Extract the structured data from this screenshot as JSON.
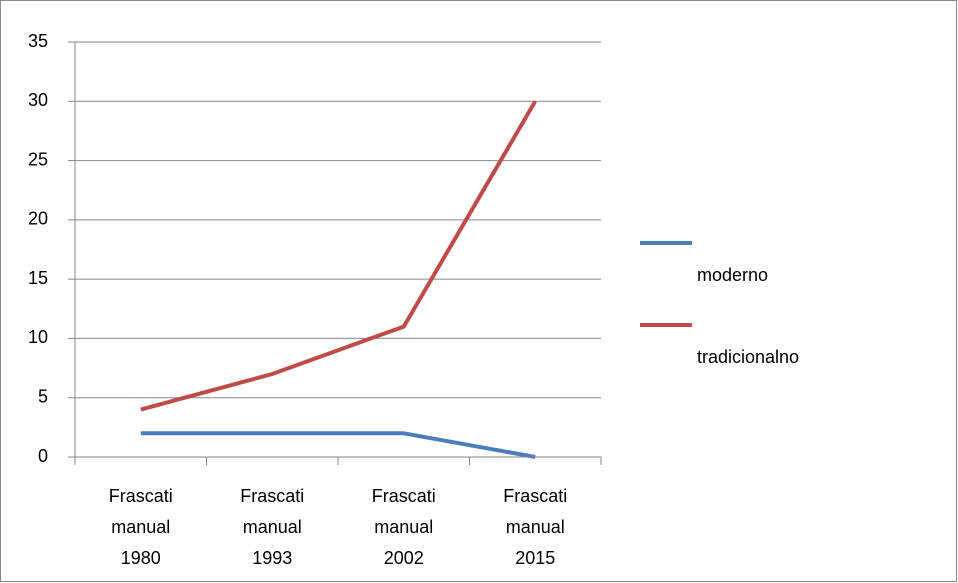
{
  "chart_data": {
    "type": "line",
    "categories": [
      "Frascati manual 1980",
      "Frascati manual 1993",
      "Frascati manual 2002",
      "Frascati manual 2015"
    ],
    "series": [
      {
        "name": "moderno",
        "color": "#4a7ebb",
        "values": [
          2,
          2,
          2,
          0
        ]
      },
      {
        "name": "tradicionalno",
        "color": "#be4b48",
        "values": [
          4,
          7,
          11,
          30
        ]
      }
    ],
    "ylim": [
      0,
      35
    ],
    "yticks": [
      0,
      5,
      10,
      15,
      20,
      25,
      30,
      35
    ],
    "grid": true,
    "legend": "right"
  }
}
